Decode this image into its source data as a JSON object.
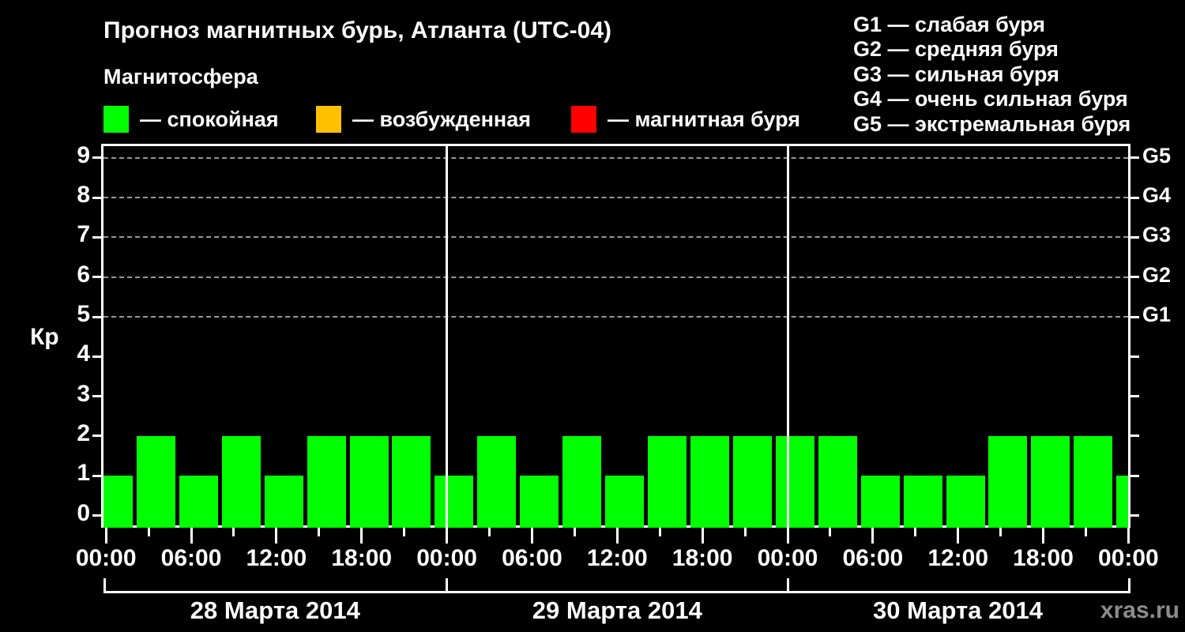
{
  "chart_data": {
    "type": "bar",
    "title": "Прогноз магнитных бурь, Атланта (UTC-04)",
    "subtitle": "Магнитосфера",
    "ylabel": "Кр",
    "watermark": "xras.ru",
    "ylim": [
      0,
      9
    ],
    "yticks": [
      0,
      1,
      2,
      3,
      4,
      5,
      6,
      7,
      8,
      9
    ],
    "grid_levels": [
      5,
      6,
      7,
      8,
      9
    ],
    "grid_style": "dashed",
    "right_axis_labels": [
      {
        "label": "G1",
        "value": 5
      },
      {
        "label": "G2",
        "value": 6
      },
      {
        "label": "G3",
        "value": 7
      },
      {
        "label": "G4",
        "value": 8
      },
      {
        "label": "G5",
        "value": 9
      }
    ],
    "x_range_hours": [
      0,
      72
    ],
    "x_minor_tick_step_hours": 3,
    "x_major_tick_step_hours": 6,
    "x_major_tick_labels": [
      "00:00",
      "06:00",
      "12:00",
      "18:00",
      "00:00",
      "06:00",
      "12:00",
      "18:00",
      "00:00",
      "06:00",
      "12:00",
      "18:00",
      "00:00"
    ],
    "day_labels": [
      "28 Марта 2014",
      "29 Марта 2014",
      "30 Марта 2014"
    ],
    "day_boundaries_hours": [
      0,
      24,
      48,
      72
    ],
    "series": [
      {
        "name": "Kp",
        "hours": [
          0,
          3,
          6,
          9,
          12,
          15,
          18,
          21,
          24,
          27,
          30,
          33,
          36,
          39,
          42,
          45,
          48,
          51,
          54,
          57,
          60,
          63,
          66,
          69,
          72
        ],
        "values": [
          1,
          2,
          1,
          2,
          1,
          2,
          2,
          2,
          1,
          2,
          1,
          2,
          1,
          2,
          2,
          2,
          2,
          2,
          1,
          1,
          1,
          2,
          2,
          2,
          1
        ],
        "color": "#00FF00"
      }
    ],
    "legend": [
      {
        "label": "— спокойная",
        "color": "#00FF00"
      },
      {
        "label": "— возбужденная",
        "color": "#FFC000"
      },
      {
        "label": "— магнитная буря",
        "color": "#FF0000"
      }
    ],
    "g_legend": [
      "G1 — слабая буря",
      "G2 — средняя буря",
      "G3 — сильная буря",
      "G4 — очень сильная буря",
      "G5 — экстремальная буря"
    ],
    "colors": {
      "quiet": "#00FF00",
      "excited": "#FFC000",
      "storm": "#FF0000",
      "background": "#000000",
      "text": "#FFFFFF",
      "grid": "#999999",
      "watermark": "#8C8C8C"
    }
  }
}
